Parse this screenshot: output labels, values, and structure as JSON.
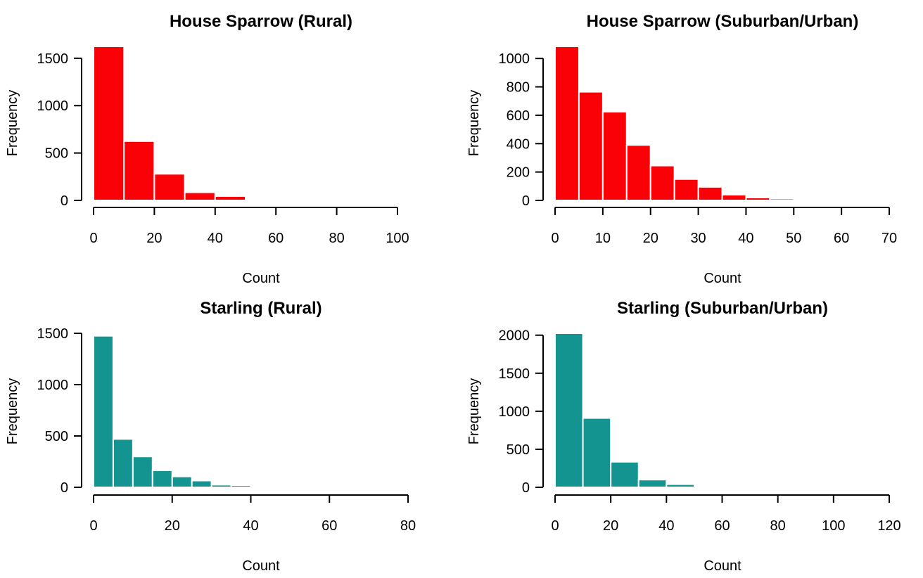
{
  "chart_data": [
    {
      "type": "bar",
      "title": "House Sparrow (Rural)",
      "xlabel": "Count",
      "ylabel": "Frequency",
      "bar_color": "#FA0007",
      "bin_edges": [
        0,
        10,
        20,
        30,
        40,
        50,
        60,
        70
      ],
      "values": [
        1625,
        625,
        280,
        85,
        45,
        10,
        3
      ],
      "xlim": [
        0,
        100
      ],
      "ylim": [
        0,
        1625
      ],
      "x_ticks": [
        "0",
        "20",
        "40",
        "60",
        "80",
        "100"
      ],
      "y_ticks": [
        "0",
        "500",
        "1000",
        "1500"
      ]
    },
    {
      "type": "bar",
      "title": "House Sparrow (Suburban/Urban)",
      "xlabel": "Count",
      "ylabel": "Frequency",
      "bar_color": "#FA0007",
      "bin_edges": [
        0,
        5,
        10,
        15,
        20,
        25,
        30,
        35,
        40,
        45,
        50,
        55
      ],
      "values": [
        1085,
        765,
        625,
        390,
        245,
        150,
        95,
        40,
        20,
        12,
        5
      ],
      "xlim": [
        0,
        70
      ],
      "ylim": [
        0,
        1085
      ],
      "x_ticks": [
        "0",
        "10",
        "20",
        "30",
        "40",
        "50",
        "60",
        "70"
      ],
      "y_ticks": [
        "0",
        "200",
        "400",
        "600",
        "800",
        "1000"
      ]
    },
    {
      "type": "bar",
      "title": "Starling (Rural)",
      "xlabel": "Count",
      "ylabel": "Frequency",
      "bar_color": "#149490",
      "bin_edges": [
        0,
        5,
        10,
        15,
        20,
        25,
        30,
        35,
        40,
        45,
        50
      ],
      "values": [
        1475,
        470,
        300,
        165,
        105,
        65,
        25,
        20,
        10,
        10
      ],
      "xlim": [
        0,
        80
      ],
      "ylim": [
        0,
        1500
      ],
      "x_ticks": [
        "0",
        "20",
        "40",
        "60",
        "80"
      ],
      "y_ticks": [
        "0",
        "500",
        "1000",
        "1500"
      ]
    },
    {
      "type": "bar",
      "title": "Starling (Suburban/Urban)",
      "xlabel": "Count",
      "ylabel": "Frequency",
      "bar_color": "#149490",
      "bin_edges": [
        0,
        10,
        20,
        30,
        40,
        50
      ],
      "values": [
        2025,
        910,
        335,
        100,
        40
      ],
      "xlim": [
        0,
        120
      ],
      "ylim": [
        0,
        2025
      ],
      "x_ticks": [
        "0",
        "20",
        "40",
        "60",
        "80",
        "100",
        "120"
      ],
      "y_ticks": [
        "0",
        "500",
        "1000",
        "1500",
        "2000"
      ]
    }
  ]
}
